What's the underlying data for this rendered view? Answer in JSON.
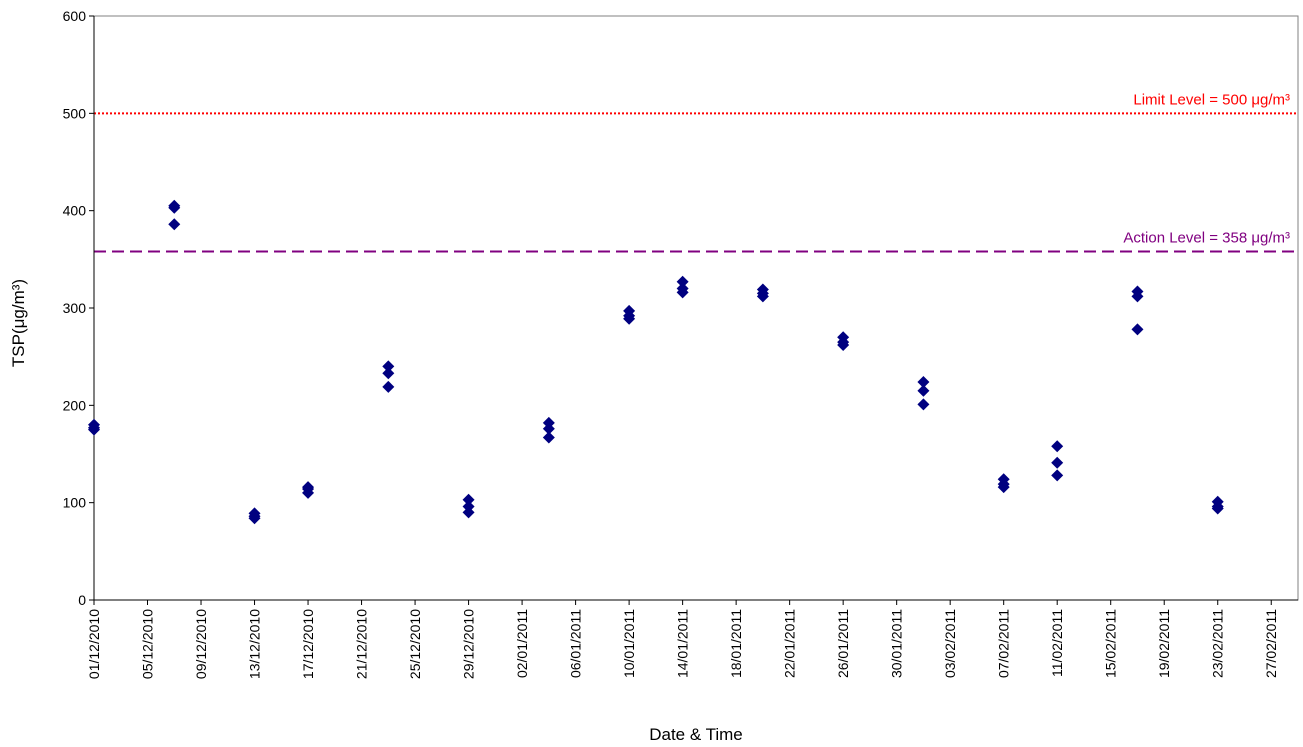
{
  "chart_data": {
    "type": "scatter",
    "xlabel": "Date & Time",
    "ylabel": "TSP(μg/m³)",
    "ylim": [
      0,
      600
    ],
    "yticks": [
      0,
      100,
      200,
      300,
      400,
      500,
      600
    ],
    "xlim": [
      "01/12/2010",
      "01/03/2011"
    ],
    "xtick_labels": [
      "01/12/2010",
      "05/12/2010",
      "09/12/2010",
      "13/12/2010",
      "17/12/2010",
      "21/12/2010",
      "25/12/2010",
      "29/12/2010",
      "02/01/2011",
      "06/01/2011",
      "10/01/2011",
      "14/01/2011",
      "18/01/2011",
      "22/01/2011",
      "26/01/2011",
      "30/01/2011",
      "03/02/2011",
      "07/02/2011",
      "11/02/2011",
      "15/02/2011",
      "19/02/2011",
      "23/02/2011",
      "27/02/2011"
    ],
    "grid": false,
    "marker_color": "#000080",
    "reference_lines": [
      {
        "label": "Limit Level = 500 μg/m³",
        "value": 500,
        "color": "#ff0000",
        "style": "dotted"
      },
      {
        "label": "Action Level = 358 μg/m³",
        "value": 358,
        "color": "#800080",
        "style": "dashed"
      }
    ],
    "points": [
      {
        "x": "01/12/2010",
        "y": 175
      },
      {
        "x": "01/12/2010",
        "y": 177
      },
      {
        "x": "01/12/2010",
        "y": 180
      },
      {
        "x": "07/12/2010",
        "y": 386
      },
      {
        "x": "07/12/2010",
        "y": 403
      },
      {
        "x": "07/12/2010",
        "y": 405
      },
      {
        "x": "13/12/2010",
        "y": 84
      },
      {
        "x": "13/12/2010",
        "y": 86
      },
      {
        "x": "13/12/2010",
        "y": 89
      },
      {
        "x": "17/12/2010",
        "y": 110
      },
      {
        "x": "17/12/2010",
        "y": 114
      },
      {
        "x": "17/12/2010",
        "y": 116
      },
      {
        "x": "23/12/2010",
        "y": 219
      },
      {
        "x": "23/12/2010",
        "y": 233
      },
      {
        "x": "23/12/2010",
        "y": 240
      },
      {
        "x": "29/12/2010",
        "y": 90
      },
      {
        "x": "29/12/2010",
        "y": 96
      },
      {
        "x": "29/12/2010",
        "y": 103
      },
      {
        "x": "04/01/2011",
        "y": 167
      },
      {
        "x": "04/01/2011",
        "y": 176
      },
      {
        "x": "04/01/2011",
        "y": 182
      },
      {
        "x": "10/01/2011",
        "y": 289
      },
      {
        "x": "10/01/2011",
        "y": 292
      },
      {
        "x": "10/01/2011",
        "y": 297
      },
      {
        "x": "14/01/2011",
        "y": 316
      },
      {
        "x": "14/01/2011",
        "y": 320
      },
      {
        "x": "14/01/2011",
        "y": 327
      },
      {
        "x": "20/01/2011",
        "y": 312
      },
      {
        "x": "20/01/2011",
        "y": 315
      },
      {
        "x": "20/01/2011",
        "y": 319
      },
      {
        "x": "26/01/2011",
        "y": 262
      },
      {
        "x": "26/01/2011",
        "y": 265
      },
      {
        "x": "26/01/2011",
        "y": 270
      },
      {
        "x": "01/02/2011",
        "y": 201
      },
      {
        "x": "01/02/2011",
        "y": 215
      },
      {
        "x": "01/02/2011",
        "y": 224
      },
      {
        "x": "07/02/2011",
        "y": 116
      },
      {
        "x": "07/02/2011",
        "y": 119
      },
      {
        "x": "07/02/2011",
        "y": 124
      },
      {
        "x": "11/02/2011",
        "y": 128
      },
      {
        "x": "11/02/2011",
        "y": 141
      },
      {
        "x": "11/02/2011",
        "y": 158
      },
      {
        "x": "17/02/2011",
        "y": 278
      },
      {
        "x": "17/02/2011",
        "y": 312
      },
      {
        "x": "17/02/2011",
        "y": 317
      },
      {
        "x": "23/02/2011",
        "y": 94
      },
      {
        "x": "23/02/2011",
        "y": 96
      },
      {
        "x": "23/02/2011",
        "y": 101
      }
    ]
  }
}
